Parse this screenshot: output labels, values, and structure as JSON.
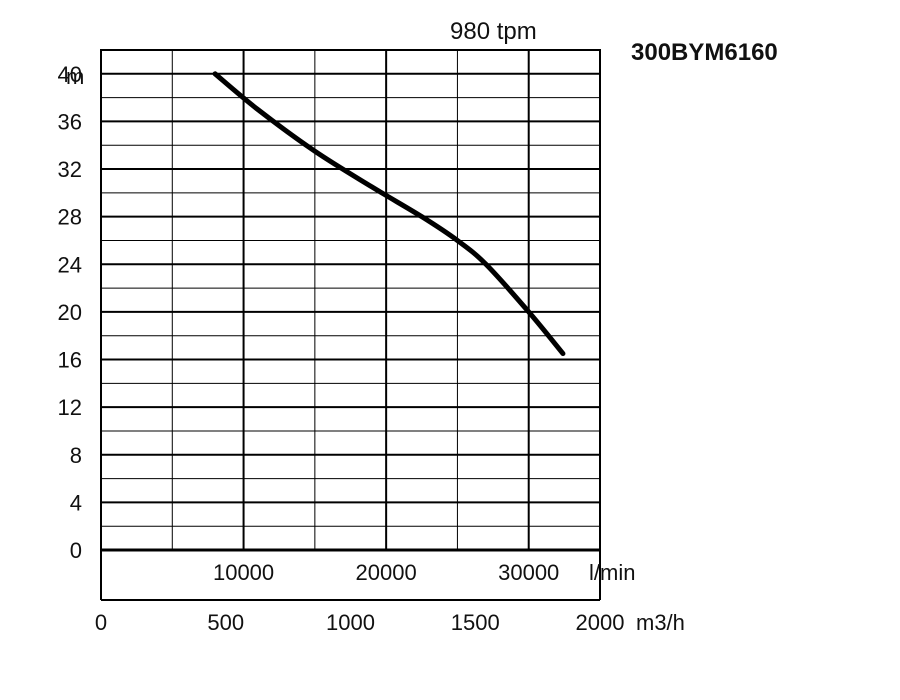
{
  "chart_data": {
    "type": "line",
    "title": "300BYM6160",
    "subtitle": "980 tpm",
    "ylabel": "m",
    "x_primary_unit": "l/min",
    "x_secondary_unit": "m3/h",
    "ylim": [
      0,
      42
    ],
    "xlim_lmin": [
      0,
      35000
    ],
    "y_ticks": [
      "0",
      "4",
      "8",
      "12",
      "16",
      "20",
      "24",
      "28",
      "32",
      "36",
      "40"
    ],
    "x_ticks_lmin": [
      "10000",
      "20000",
      "30000"
    ],
    "x_ticks_m3h": [
      "0",
      "500",
      "1000",
      "1500",
      "2000"
    ],
    "grid": true,
    "series": [
      {
        "x": [
          8000,
          11000,
          15000,
          19000,
          22500,
          25000,
          27000,
          30000,
          32400
        ],
        "y": [
          40,
          37,
          33.5,
          30.5,
          28,
          26,
          24,
          20,
          16.5
        ]
      }
    ]
  }
}
